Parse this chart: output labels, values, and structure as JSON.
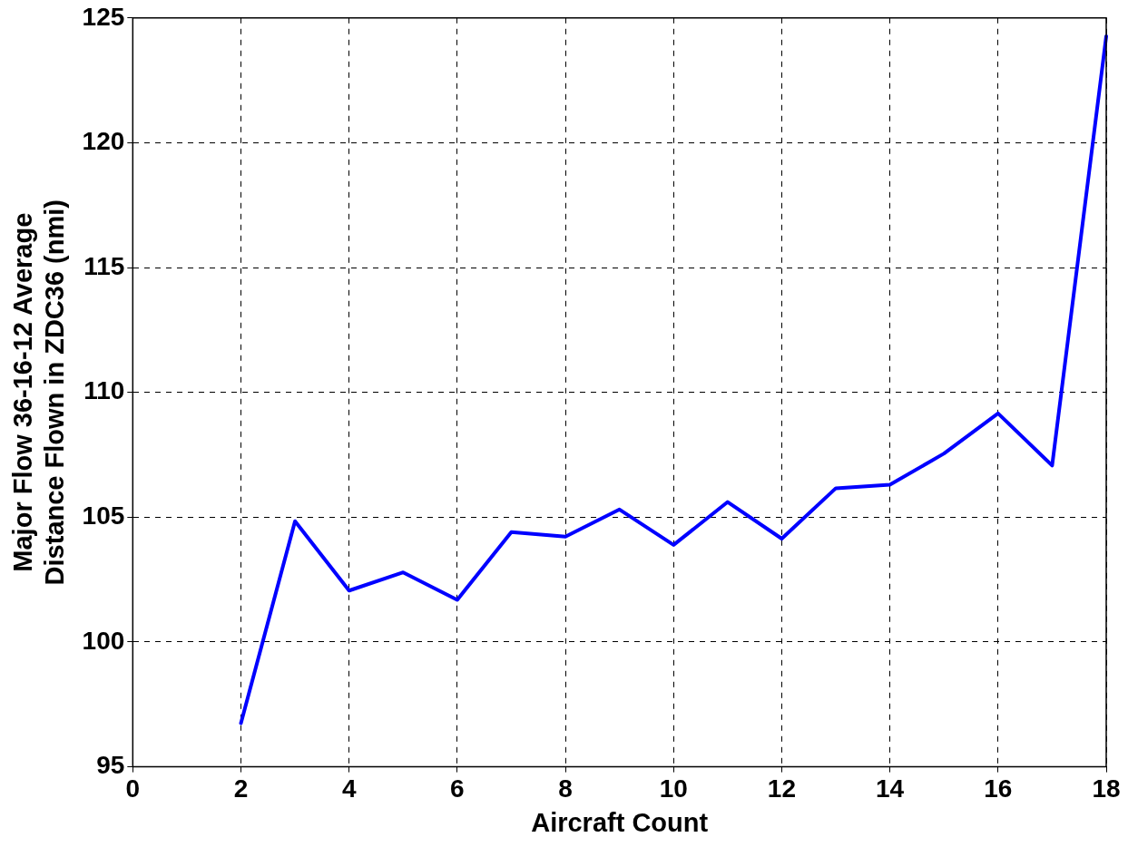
{
  "chart_data": {
    "type": "line",
    "xlabel": "Aircraft Count",
    "ylabel": "Major Flow 36-16-12 Average\nDistance Flown in ZDC36 (nmi)",
    "x": [
      2,
      3,
      4,
      5,
      6,
      7,
      8,
      9,
      10,
      11,
      12,
      13,
      14,
      15,
      16,
      17,
      18
    ],
    "series": [
      {
        "color": "#0000ff",
        "values": [
          96.75,
          104.84,
          102.06,
          102.79,
          101.69,
          104.4,
          104.22,
          105.31,
          103.89,
          105.61,
          104.14,
          106.16,
          106.3,
          107.55,
          109.16,
          107.07,
          124.27
        ]
      }
    ],
    "xlim": [
      0,
      18
    ],
    "xticks": [
      0,
      2,
      4,
      6,
      8,
      10,
      12,
      14,
      16,
      18
    ],
    "ylim": [
      95,
      125
    ],
    "yticks": [
      95,
      100,
      105,
      110,
      115,
      120,
      125
    ],
    "grid": true,
    "line_style": "solid",
    "legend": false
  }
}
